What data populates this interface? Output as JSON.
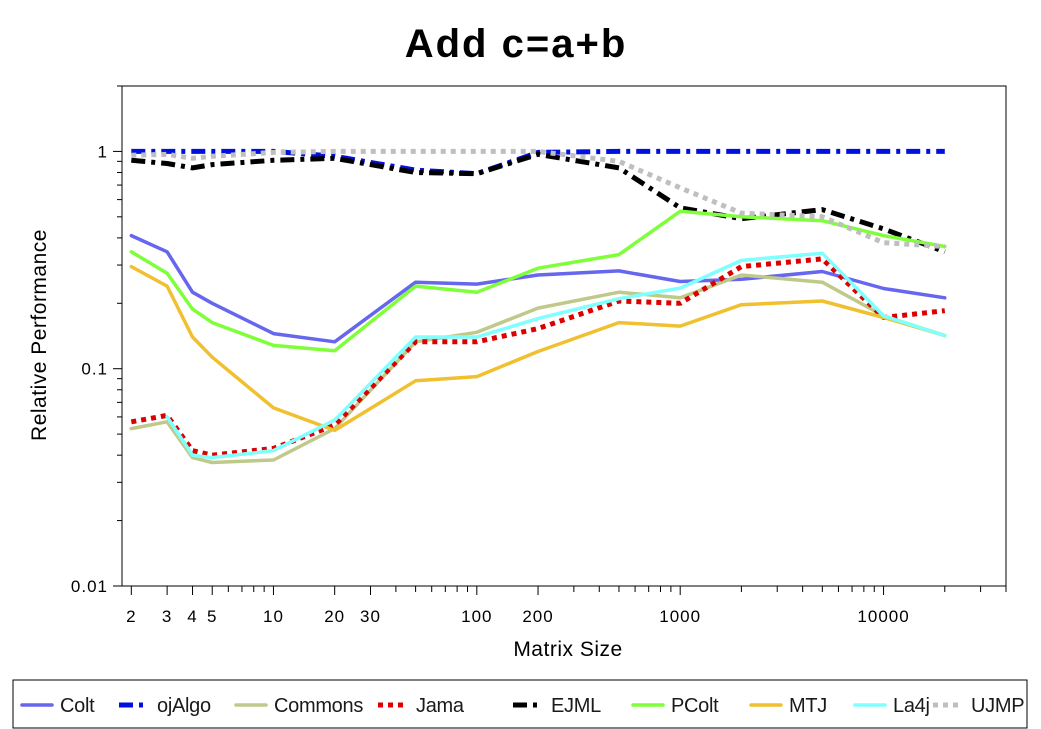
{
  "chart_data": {
    "type": "line",
    "title": "Add c=a+b",
    "xlabel": "Matrix Size",
    "ylabel": "Relative Performance",
    "x_scale": "log",
    "y_scale": "log",
    "xlim": [
      1.8,
      40000
    ],
    "ylim": [
      0.01,
      2
    ],
    "x_ticks": [
      {
        "value": 2,
        "label": "2"
      },
      {
        "value": 3,
        "label": "3"
      },
      {
        "value": 4,
        "label": "4"
      },
      {
        "value": 5,
        "label": "5"
      },
      {
        "value": 10,
        "label": "10"
      },
      {
        "value": 20,
        "label": "20"
      },
      {
        "value": 30,
        "label": "30"
      },
      {
        "value": 100,
        "label": "100"
      },
      {
        "value": 200,
        "label": "200"
      },
      {
        "value": 1000,
        "label": "1000"
      },
      {
        "value": 10000,
        "label": "10000"
      }
    ],
    "y_ticks": [
      {
        "value": 0.01,
        "label": "0.01"
      },
      {
        "value": 0.1,
        "label": "0.1"
      },
      {
        "value": 1,
        "label": "1"
      }
    ],
    "grid": false,
    "legend_position": "bottom",
    "x": [
      2,
      3,
      4,
      5,
      10,
      20,
      50,
      100,
      200,
      500,
      1000,
      2000,
      5000,
      10000,
      20000
    ],
    "series": [
      {
        "name": "Colt",
        "color": "#6666ee",
        "dash": "solid",
        "values": [
          0.41,
          0.345,
          0.225,
          0.2,
          0.145,
          0.133,
          0.25,
          0.245,
          0.27,
          0.282,
          0.252,
          0.258,
          0.28,
          0.234,
          0.212
        ]
      },
      {
        "name": "ojAlgo",
        "color": "#0010dd",
        "dash": "dashdot",
        "values": [
          1.0,
          1.0,
          1.0,
          1.0,
          1.0,
          0.95,
          0.82,
          0.79,
          0.99,
          1.0,
          1.0,
          1.0,
          1.0,
          1.0,
          1.0
        ]
      },
      {
        "name": "Commons",
        "color": "#bfc98a",
        "dash": "solid",
        "values": [
          0.053,
          0.057,
          0.039,
          0.037,
          0.038,
          0.053,
          0.133,
          0.147,
          0.19,
          0.225,
          0.212,
          0.27,
          0.25,
          0.175,
          0.142
        ]
      },
      {
        "name": "Jama",
        "color": "#dd0000",
        "dash": "dot",
        "values": [
          0.057,
          0.061,
          0.042,
          0.04,
          0.043,
          0.055,
          0.133,
          0.133,
          0.153,
          0.205,
          0.2,
          0.295,
          0.32,
          0.172,
          0.185
        ]
      },
      {
        "name": "EJML",
        "color": "#000000",
        "dash": "dashdot",
        "values": [
          0.91,
          0.88,
          0.84,
          0.87,
          0.91,
          0.93,
          0.8,
          0.79,
          0.97,
          0.84,
          0.55,
          0.49,
          0.54,
          0.44,
          0.345
        ]
      },
      {
        "name": "PColt",
        "color": "#7fff3a",
        "dash": "solid",
        "values": [
          0.345,
          0.275,
          0.188,
          0.163,
          0.128,
          0.121,
          0.24,
          0.225,
          0.29,
          0.335,
          0.53,
          0.5,
          0.48,
          0.41,
          0.365
        ]
      },
      {
        "name": "MTJ",
        "color": "#f0c030",
        "dash": "solid",
        "values": [
          0.295,
          0.24,
          0.14,
          0.113,
          0.066,
          0.052,
          0.088,
          0.092,
          0.12,
          0.163,
          0.157,
          0.197,
          0.205,
          0.172,
          0.142
        ]
      },
      {
        "name": "La4j",
        "color": "#80ffff",
        "dash": "solid",
        "values": [
          null,
          0.06,
          0.04,
          0.039,
          0.042,
          0.058,
          0.14,
          0.14,
          0.17,
          0.21,
          0.235,
          0.315,
          0.34,
          0.175,
          0.142
        ]
      },
      {
        "name": "UJMP",
        "color": "#bfbfbf",
        "dash": "dot",
        "values": [
          0.96,
          0.97,
          0.93,
          0.95,
          0.99,
          1.0,
          1.0,
          1.0,
          1.0,
          0.9,
          0.68,
          0.52,
          0.5,
          0.38,
          0.365
        ]
      }
    ]
  }
}
